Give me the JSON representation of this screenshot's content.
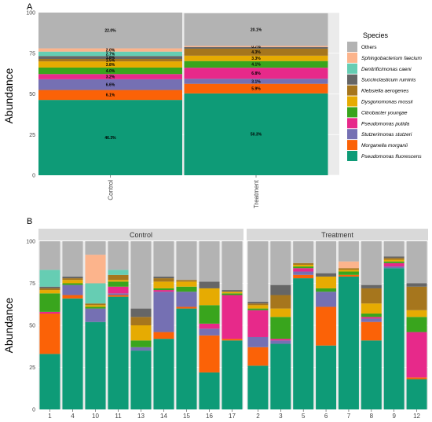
{
  "figure": {
    "ylabel": "Abundance",
    "legend_title": "Species",
    "species": [
      {
        "key": "others",
        "name": "Others",
        "color": "#b3b3b3",
        "italic": false
      },
      {
        "key": "sphingo",
        "name": "Sphingobacterium faecium",
        "color": "#fcb48c",
        "italic": true
      },
      {
        "key": "denitri",
        "name": "Denitrificimonas caeni",
        "color": "#66cdb3",
        "italic": true
      },
      {
        "key": "succini",
        "name": "Succinclasticum ruminis",
        "color": "#666666",
        "italic": true
      },
      {
        "key": "klebs",
        "name": "Klebsiella aerogenes",
        "color": "#a6761d",
        "italic": true
      },
      {
        "key": "dysgo",
        "name": "Dysgonomonas mossii",
        "color": "#e6ab02",
        "italic": true
      },
      {
        "key": "citro",
        "name": "Citrobacter youngae",
        "color": "#39a51d",
        "italic": true
      },
      {
        "key": "pputida",
        "name": "Pseudomonas putida",
        "color": "#e7298a",
        "italic": true
      },
      {
        "key": "stutz",
        "name": "Stutzerimonas stutzeri",
        "color": "#7570b3",
        "italic": true
      },
      {
        "key": "morg",
        "name": "Morganella morganii",
        "color": "#fb6207",
        "italic": true
      },
      {
        "key": "pfluor",
        "name": "Pseudomonas fluorescens",
        "color": "#0e9b77",
        "italic": true
      }
    ]
  },
  "chart_data": [
    {
      "panel": "A",
      "type": "bar",
      "stacked": true,
      "categories": [
        "Control",
        "Treatment"
      ],
      "ylabel": "Abundance",
      "ylim": [
        0,
        100
      ],
      "yticks": [
        "0",
        "25",
        "50",
        "75",
        "100"
      ],
      "series": [
        {
          "name": "Pseudomonas fluorescens",
          "values": [
            46.3,
            50.3
          ],
          "labels": [
            "46.3%",
            "50.3%"
          ]
        },
        {
          "name": "Morganella morganii",
          "values": [
            6.1,
            5.9
          ],
          "labels": [
            "6.1%",
            "5.9%"
          ]
        },
        {
          "name": "Stutzerimonas stutzeri",
          "values": [
            6.6,
            3.1
          ],
          "labels": [
            "6.6%",
            "3.1%"
          ]
        },
        {
          "name": "Pseudomonas putida",
          "values": [
            3.2,
            6.8
          ],
          "labels": [
            "3.2%",
            "6.8%"
          ]
        },
        {
          "name": "Citrobacter youngae",
          "values": [
            4.0,
            4.1
          ],
          "labels": [
            "4.0%",
            "4.1%"
          ]
        },
        {
          "name": "Dysgonomonas mossii",
          "values": [
            3.8,
            3.3
          ],
          "labels": [
            "3.8%",
            "3.3%"
          ]
        },
        {
          "name": "Klebsiella aerogenes",
          "values": [
            1.5,
            4.3
          ],
          "labels": [
            "1.5%",
            "4.3%"
          ]
        },
        {
          "name": "Succinclasticum ruminis",
          "values": [
            1.8,
            1.0
          ],
          "labels": [
            "1.8%",
            ""
          ]
        },
        {
          "name": "Denitrificimonas caeni",
          "values": [
            2.7,
            0.0
          ],
          "labels": [
            "2.7%",
            ""
          ]
        },
        {
          "name": "Sphingobacterium faecium",
          "values": [
            2.0,
            0.7
          ],
          "labels": [
            "2.0%",
            "0.7%"
          ]
        },
        {
          "name": "Others",
          "values": [
            22.0,
            20.1
          ],
          "labels": [
            "22.0%",
            "20.1%"
          ]
        }
      ]
    },
    {
      "panel": "B",
      "type": "bar",
      "stacked": true,
      "ylabel": "Abundance",
      "ylim": [
        0,
        100
      ],
      "yticks": [
        "0",
        "25",
        "50",
        "75",
        "100"
      ],
      "facets": [
        "Control",
        "Treatment"
      ],
      "categories_control": [
        "1",
        "4",
        "10",
        "11",
        "13",
        "14",
        "15",
        "16",
        "17"
      ],
      "categories_treatment": [
        "2",
        "3",
        "5",
        "6",
        "7",
        "8",
        "9",
        "12"
      ],
      "series_order": [
        "Pseudomonas fluorescens",
        "Morganella morganii",
        "Stutzerimonas stutzeri",
        "Pseudomonas putida",
        "Citrobacter youngae",
        "Dysgonomonas mossii",
        "Klebsiella aerogenes",
        "Succinclasticum ruminis",
        "Denitrificimonas caeni",
        "Sphingobacterium faecium",
        "Others"
      ],
      "control_values": [
        [
          33,
          24,
          0,
          1,
          11,
          2,
          1,
          1,
          10,
          0,
          17
        ],
        [
          66,
          2,
          6,
          0,
          1,
          2,
          1,
          1,
          0,
          0,
          21
        ],
        [
          52,
          0,
          8,
          0,
          1,
          1,
          1,
          0,
          12,
          17,
          8
        ],
        [
          67,
          1,
          1,
          4,
          3,
          1,
          3,
          0,
          3,
          0,
          17
        ],
        [
          35,
          0,
          2,
          0,
          4,
          9,
          5,
          5,
          0,
          0,
          40
        ],
        [
          42,
          4,
          24,
          1,
          1,
          4,
          2,
          1,
          0,
          0,
          21
        ],
        [
          60,
          1,
          9,
          0,
          3,
          3,
          1,
          0,
          0,
          0,
          23
        ],
        [
          22,
          22,
          4,
          3,
          11,
          10,
          0,
          4,
          0,
          0,
          24
        ],
        [
          41,
          1,
          0,
          26,
          1,
          1,
          0,
          1,
          0,
          0,
          29
        ]
      ],
      "treatment_values": [
        [
          26,
          11,
          6,
          16,
          1,
          2,
          1,
          1,
          0,
          0,
          36
        ],
        [
          39,
          0,
          2,
          1,
          13,
          5,
          8,
          6,
          0,
          0,
          26
        ],
        [
          78,
          2,
          2,
          2,
          1,
          1,
          1,
          0,
          0,
          0,
          13
        ],
        [
          38,
          23,
          9,
          0,
          2,
          7,
          0,
          2,
          0,
          0,
          19
        ],
        [
          79,
          1,
          0,
          0,
          2,
          1,
          1,
          0,
          0,
          4,
          12
        ],
        [
          41,
          11,
          2,
          1,
          2,
          6,
          9,
          2,
          0,
          0,
          26
        ],
        [
          84,
          0,
          1,
          2,
          1,
          1,
          1,
          1,
          0,
          0,
          9
        ],
        [
          18,
          1,
          0,
          27,
          9,
          4,
          14,
          2,
          0,
          0,
          25
        ]
      ]
    }
  ]
}
